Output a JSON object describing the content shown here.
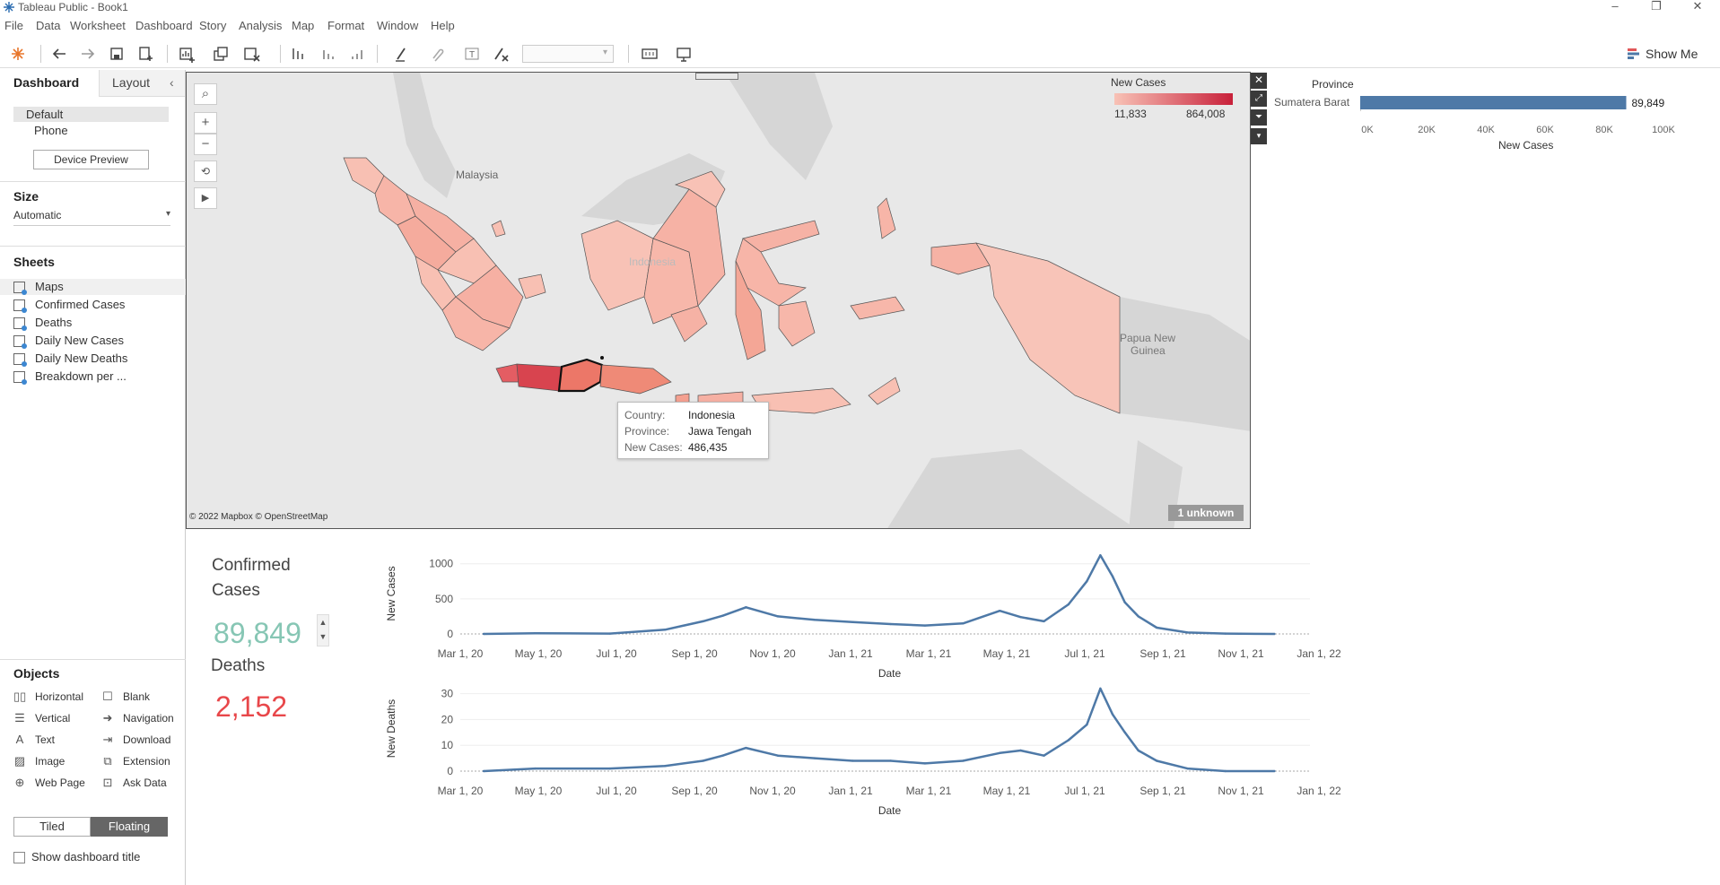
{
  "window": {
    "title": "Tableau Public - Book1"
  },
  "menu": [
    "File",
    "Data",
    "Worksheet",
    "Dashboard",
    "Story",
    "Analysis",
    "Map",
    "Format",
    "Window",
    "Help"
  ],
  "toolbar": {
    "show_me": "Show Me"
  },
  "left_panel": {
    "tabs": {
      "dashboard": "Dashboard",
      "layout": "Layout"
    },
    "devices": {
      "default": "Default",
      "phone": "Phone",
      "preview_button": "Device Preview"
    },
    "size": {
      "title": "Size",
      "value": "Automatic"
    },
    "sheets": {
      "title": "Sheets",
      "items": [
        "Maps",
        "Confirmed Cases",
        "Deaths",
        "Daily New Cases",
        "Daily New Deaths",
        "Breakdown per ..."
      ]
    },
    "objects": {
      "title": "Objects",
      "items": [
        {
          "label": "Horizontal",
          "icon": "horizontal-container-icon"
        },
        {
          "label": "Blank",
          "icon": "blank-icon"
        },
        {
          "label": "Vertical",
          "icon": "vertical-container-icon"
        },
        {
          "label": "Navigation",
          "icon": "navigation-icon"
        },
        {
          "label": "Text",
          "icon": "text-icon"
        },
        {
          "label": "Download",
          "icon": "download-icon"
        },
        {
          "label": "Image",
          "icon": "image-icon"
        },
        {
          "label": "Extension",
          "icon": "extension-icon"
        },
        {
          "label": "Web Page",
          "icon": "web-page-icon"
        },
        {
          "label": "Ask Data",
          "icon": "ask-data-icon"
        }
      ]
    },
    "mode": {
      "tiled": "Tiled",
      "floating": "Floating",
      "active": "Floating"
    },
    "show_title": "Show dashboard title"
  },
  "map": {
    "legend": {
      "title": "New Cases",
      "min": "11,833",
      "max": "864,008"
    },
    "labels": {
      "malaysia": "Malaysia",
      "indonesia": "Indonesia",
      "png_line1": "Papua New",
      "png_line2": "Guinea"
    },
    "tooltip": {
      "country_label": "Country:",
      "country_value": "Indonesia",
      "province_label": "Province:",
      "province_value": "Jawa Tengah",
      "cases_label": "New Cases:",
      "cases_value": "486,435"
    },
    "attribution": "© 2022 Mapbox © OpenStreetMap",
    "unknown_badge": "1 unknown",
    "colors": {
      "low": "#f8c2b6",
      "high": "#c8203a"
    }
  },
  "province_bar": {
    "header": "Province",
    "row_label": "Sumatera Barat",
    "value": 89849,
    "value_label": "89,849",
    "ticks": [
      "0K",
      "20K",
      "40K",
      "60K",
      "80K",
      "100K"
    ],
    "xlim": [
      0,
      100000
    ],
    "axis_title": "New Cases",
    "color": "#4e79a7"
  },
  "kpi": {
    "confirmed": {
      "title_line1": "Confirmed",
      "title_line2": "Cases",
      "value": "89,849",
      "color": "#86c6b4"
    },
    "deaths": {
      "title": "Deaths",
      "value": "2,152",
      "color": "#e8474a"
    }
  },
  "chart_data": [
    {
      "type": "line",
      "ylabel": "New Cases",
      "xlabel": "Date",
      "x_ticks": [
        "Mar 1, 20",
        "May 1, 20",
        "Jul 1, 20",
        "Sep 1, 20",
        "Nov 1, 20",
        "Jan 1, 21",
        "Mar 1, 21",
        "May 1, 21",
        "Jul 1, 21",
        "Sep 1, 21",
        "Nov 1, 21",
        "Jan 1, 22"
      ],
      "y_ticks": [
        0,
        500,
        1000
      ],
      "ylim": [
        0,
        1150
      ],
      "xlim": [
        "2020-03-01",
        "2022-01-01"
      ],
      "x": [
        "2020-03-20",
        "2020-05-01",
        "2020-07-01",
        "2020-08-15",
        "2020-09-15",
        "2020-10-01",
        "2020-10-20",
        "2020-11-15",
        "2020-12-15",
        "2021-01-15",
        "2021-02-15",
        "2021-03-15",
        "2021-04-15",
        "2021-05-15",
        "2021-06-01",
        "2021-06-20",
        "2021-07-10",
        "2021-07-25",
        "2021-08-05",
        "2021-08-15",
        "2021-08-25",
        "2021-09-05",
        "2021-09-20",
        "2021-10-15",
        "2021-11-15",
        "2021-12-25"
      ],
      "series": [
        {
          "values": [
            0,
            10,
            5,
            60,
            180,
            260,
            380,
            250,
            200,
            170,
            140,
            120,
            150,
            330,
            240,
            180,
            420,
            750,
            1120,
            820,
            450,
            250,
            90,
            20,
            5,
            0
          ]
        }
      ],
      "color": "#4e79a7"
    },
    {
      "type": "line",
      "ylabel": "New Deaths",
      "xlabel": "Date",
      "x_ticks": [
        "Mar 1, 20",
        "May 1, 20",
        "Jul 1, 20",
        "Sep 1, 20",
        "Nov 1, 20",
        "Jan 1, 21",
        "Mar 1, 21",
        "May 1, 21",
        "Jul 1, 21",
        "Sep 1, 21",
        "Nov 1, 21",
        "Jan 1, 22"
      ],
      "y_ticks": [
        0,
        10,
        20,
        30
      ],
      "ylim": [
        0,
        33
      ],
      "xlim": [
        "2020-03-01",
        "2022-01-01"
      ],
      "x": [
        "2020-03-20",
        "2020-05-01",
        "2020-07-01",
        "2020-08-15",
        "2020-09-15",
        "2020-10-01",
        "2020-10-20",
        "2020-11-15",
        "2020-12-15",
        "2021-01-15",
        "2021-02-15",
        "2021-03-15",
        "2021-04-15",
        "2021-05-15",
        "2021-06-01",
        "2021-06-20",
        "2021-07-10",
        "2021-07-25",
        "2021-08-05",
        "2021-08-15",
        "2021-08-25",
        "2021-09-05",
        "2021-09-20",
        "2021-10-15",
        "2021-11-15",
        "2021-12-25"
      ],
      "series": [
        {
          "values": [
            0,
            1,
            1,
            2,
            4,
            6,
            9,
            6,
            5,
            4,
            4,
            3,
            4,
            7,
            8,
            6,
            12,
            18,
            32,
            22,
            15,
            8,
            4,
            1,
            0,
            0
          ]
        }
      ],
      "color": "#4e79a7"
    }
  ]
}
